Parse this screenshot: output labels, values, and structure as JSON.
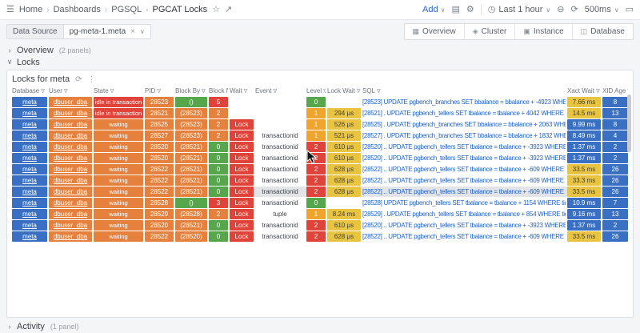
{
  "colors": {
    "blue": "#3a70c4",
    "orange": "#e5813c",
    "red": "#e0433a",
    "green": "#56a64b",
    "yellow": "#efa42e",
    "gold": "#e9c440"
  },
  "icons": {
    "menu": "☰",
    "chevron_right": "›",
    "caret_down": "∨",
    "star": "☆",
    "share": "↗",
    "save": "▤",
    "gear": "⚙",
    "clock": "◷",
    "zoom_out": "⊖",
    "refresh": "⟳",
    "monitor": "▭",
    "close": "×",
    "filter": "∇",
    "kebab": "⋮"
  },
  "topnav": {
    "breadcrumbs": [
      "Home",
      "Dashboards",
      "PGSQL",
      "PGCAT Locks"
    ],
    "add_label": "Add",
    "time_range": "Last 1 hour",
    "refresh_interval": "500ms"
  },
  "subnav": {
    "datasource_label": "Data Source",
    "datasource_value": "pg-meta-1.meta",
    "nav_buttons": [
      {
        "label": "Overview",
        "icon": "▦"
      },
      {
        "label": "Cluster",
        "icon": "◈"
      },
      {
        "label": "Instance",
        "icon": "▣"
      },
      {
        "label": "Database",
        "icon": "◫"
      }
    ]
  },
  "sections": {
    "overview": {
      "title": "Overview",
      "count": "(2 panels)"
    },
    "locks": {
      "title": "Locks"
    },
    "activity": {
      "title": "Activity",
      "count": "(1 panel)"
    }
  },
  "panel": {
    "title": "Locks for meta"
  },
  "table": {
    "columns": [
      "Database",
      "User",
      "State",
      "PID",
      "Block By",
      "Block N",
      "Wait",
      "Event",
      "Level",
      "Lock Wait",
      "SQL",
      "Xact Wait",
      "XID Age"
    ],
    "highlight_row_index": 8,
    "rows": [
      {
        "database": "meta",
        "user": "dbuser_dba",
        "state": "idle in transaction",
        "state_color": "red",
        "pid": "28523",
        "block_by": "()",
        "block_by_color": "green",
        "block_n": "5",
        "block_n_color": "red",
        "wait": "",
        "event": "",
        "level": "0",
        "level_color": "green",
        "lock_wait": "",
        "sql": "[28523] UPDATE pgbench_branches SET bbalance = bbalance + -4923 WHERE bid = 1;",
        "xact_wait": "7.66 ms",
        "xact_wait_color": "gold",
        "xid_age": "8"
      },
      {
        "database": "meta",
        "user": "dbuser_dba",
        "state": "idle in transaction",
        "state_color": "red",
        "pid": "28521",
        "block_by": "(28523)",
        "block_by_color": "orange",
        "block_n": "2",
        "block_n_color": "orange",
        "wait": "",
        "event": "",
        "level": "1",
        "level_color": "yellow",
        "lock_wait": "294 μs",
        "sql": "[28521] . UPDATE pgbench_tellers SET tbalance = tbalance + 4042 WHERE tid = 9;",
        "xact_wait": "14.5 ms",
        "xact_wait_color": "gold",
        "xid_age": "13"
      },
      {
        "database": "meta",
        "user": "dbuser_dba",
        "state": "waiting",
        "state_color": "orange",
        "pid": "28525",
        "block_by": "(28523)",
        "block_by_color": "orange",
        "block_n": "2",
        "block_n_color": "orange",
        "wait": "Lock",
        "event": "",
        "level": "1",
        "level_color": "yellow",
        "lock_wait": "526 μs",
        "sql": "[28525] . UPDATE pgbench_branches SET bbalance = bbalance + 2063 WHERE bid = 1;",
        "xact_wait": "9.99 ms",
        "xact_wait_color": "blue",
        "xid_age": "8"
      },
      {
        "database": "meta",
        "user": "dbuser_dba",
        "state": "waiting",
        "state_color": "orange",
        "pid": "28527",
        "block_by": "(28523)",
        "block_by_color": "orange",
        "block_n": "2",
        "block_n_color": "orange",
        "wait": "Lock",
        "event": "transactionid",
        "level": "1",
        "level_color": "yellow",
        "lock_wait": "521 μs",
        "sql": "[28527] . UPDATE pgbench_branches SET bbalance = bbalance + 1832 WHERE bid = 1;",
        "xact_wait": "8.49 ms",
        "xact_wait_color": "blue",
        "xid_age": "4"
      },
      {
        "database": "meta",
        "user": "dbuser_dba",
        "state": "waiting",
        "state_color": "orange",
        "pid": "28520",
        "block_by": "(28521)",
        "block_by_color": "orange",
        "block_n": "0",
        "block_n_color": "green",
        "wait": "Lock",
        "event": "transactionid",
        "level": "2",
        "level_color": "red",
        "lock_wait": "610 μs",
        "sql": "[28520] .. UPDATE pgbench_tellers SET tbalance = tbalance + -3923 WHERE tid = 9;",
        "xact_wait": "1.37 ms",
        "xact_wait_color": "blue",
        "xid_age": "2"
      },
      {
        "database": "meta",
        "user": "dbuser_dba",
        "state": "waiting",
        "state_color": "orange",
        "pid": "28520",
        "block_by": "(28521)",
        "block_by_color": "orange",
        "block_n": "0",
        "block_n_color": "green",
        "wait": "Lock",
        "event": "transactionid",
        "level": "2",
        "level_color": "red",
        "lock_wait": "610 μs",
        "sql": "[28520] .. UPDATE pgbench_tellers SET tbalance = tbalance + -3923 WHERE tid = 9;",
        "xact_wait": "1.37 ms",
        "xact_wait_color": "blue",
        "xid_age": "2"
      },
      {
        "database": "meta",
        "user": "dbuser_dba",
        "state": "waiting",
        "state_color": "orange",
        "pid": "28522",
        "block_by": "(28521)",
        "block_by_color": "orange",
        "block_n": "0",
        "block_n_color": "green",
        "wait": "Lock",
        "event": "transactionid",
        "level": "2",
        "level_color": "red",
        "lock_wait": "628 μs",
        "sql": "[28522] .. UPDATE pgbench_tellers SET tbalance = tbalance + -609 WHERE tid = 9;",
        "xact_wait": "33.5 ms",
        "xact_wait_color": "gold",
        "xid_age": "26"
      },
      {
        "database": "meta",
        "user": "dbuser_dba",
        "state": "waiting",
        "state_color": "orange",
        "pid": "28522",
        "block_by": "(28521)",
        "block_by_color": "orange",
        "block_n": "0",
        "block_n_color": "green",
        "wait": "Lock",
        "event": "transactionid",
        "level": "2",
        "level_color": "red",
        "lock_wait": "628 μs",
        "sql": "[28522] .. UPDATE pgbench_tellers SET tbalance = tbalance + -609 WHERE tid = 9;",
        "xact_wait": "33.3 ms",
        "xact_wait_color": "gold",
        "xid_age": "26"
      },
      {
        "database": "meta",
        "user": "dbuser_dba",
        "state": "waiting",
        "state_color": "orange",
        "pid": "28522",
        "block_by": "(28521)",
        "block_by_color": "orange",
        "block_n": "0",
        "block_n_color": "green",
        "wait": "Lock",
        "event": "transactionid",
        "level": "2",
        "level_color": "red",
        "lock_wait": "628 μs",
        "sql": "[28522] .. UPDATE pgbench_tellers SET tbalance = tbalance + -609 WHERE tid = 9;",
        "xact_wait": "33.5 ms",
        "xact_wait_color": "gold",
        "xid_age": "26"
      },
      {
        "database": "meta",
        "user": "dbuser_dba",
        "state": "waiting",
        "state_color": "orange",
        "pid": "28528",
        "block_by": "()",
        "block_by_color": "green",
        "block_n": "3",
        "block_n_color": "red",
        "wait": "Lock",
        "event": "transactionid",
        "level": "0",
        "level_color": "green",
        "lock_wait": "",
        "sql": "[28528] UPDATE pgbench_tellers SET tbalance = tbalance + 1154 WHERE tid = 1;",
        "xact_wait": "10.9 ms",
        "xact_wait_color": "blue",
        "xid_age": "7"
      },
      {
        "database": "meta",
        "user": "dbuser_dba",
        "state": "waiting",
        "state_color": "orange",
        "pid": "28529",
        "block_by": "(28528)",
        "block_by_color": "orange",
        "block_n": "2",
        "block_n_color": "orange",
        "wait": "Lock",
        "event": "tuple",
        "level": "1",
        "level_color": "yellow",
        "lock_wait": "8.24 ms",
        "sql": "[28529] . UPDATE pgbench_tellers SET tbalance = tbalance + 854 WHERE tid = 1;",
        "xact_wait": "9.16 ms",
        "xact_wait_color": "blue",
        "xid_age": "13"
      },
      {
        "database": "meta",
        "user": "dbuser_dba",
        "state": "waiting",
        "state_color": "orange",
        "pid": "28520",
        "block_by": "(28521)",
        "block_by_color": "orange",
        "block_n": "0",
        "block_n_color": "green",
        "wait": "Lock",
        "event": "transactionid",
        "level": "2",
        "level_color": "red",
        "lock_wait": "610 μs",
        "sql": "[28520] .. UPDATE pgbench_tellers SET tbalance = tbalance + -3923 WHERE tid = 9;",
        "xact_wait": "1.37 ms",
        "xact_wait_color": "blue",
        "xid_age": "2"
      },
      {
        "database": "meta",
        "user": "dbuser_dba",
        "state": "waiting",
        "state_color": "orange",
        "pid": "28522",
        "block_by": "(28520)",
        "block_by_color": "orange",
        "block_n": "0",
        "block_n_color": "green",
        "wait": "Lock",
        "event": "transactionid",
        "level": "2",
        "level_color": "red",
        "lock_wait": "628 μs",
        "sql": "[28522] .. UPDATE pgbench_tellers SET tbalance = tbalance + -609 WHERE tid = 9;",
        "xact_wait": "33.5 ms",
        "xact_wait_color": "gold",
        "xid_age": "26"
      }
    ]
  }
}
